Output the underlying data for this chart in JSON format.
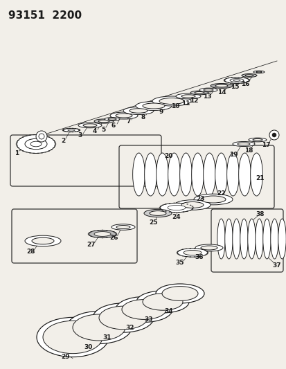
{
  "title": "93151  2200",
  "bg_color": "#f2efe9",
  "line_color": "#1a1a1a",
  "gray_color": "#888888",
  "dark_color": "#444444",
  "title_fontsize": 11,
  "label_fontsize": 6.5,
  "figw": 4.14,
  "figh": 5.33,
  "dpi": 100
}
